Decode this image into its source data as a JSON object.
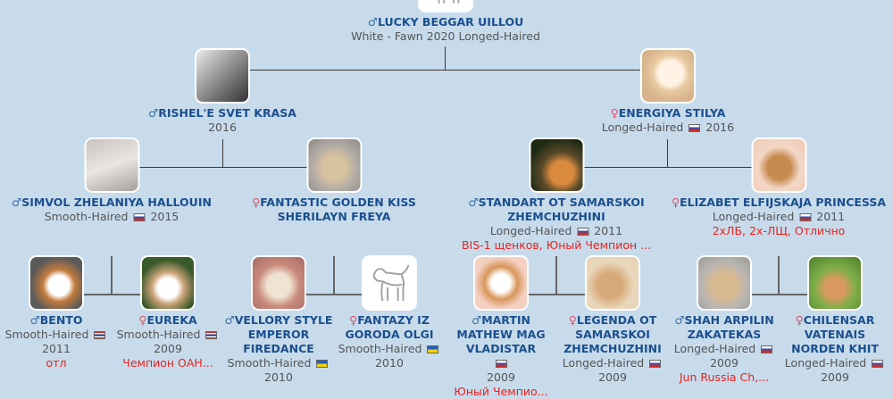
{
  "colors": {
    "background": "#c7dbeb",
    "name": "#1b4f8e",
    "award": "#e8231f",
    "male": "#3b6ea8",
    "female": "#d9546a"
  },
  "root": {
    "sex": "♂",
    "name": "LUCKY BEGGAR UILLOU",
    "details": "White - Fawn 2020 Longed-Haired",
    "photo": "placeholder-dog-icon"
  },
  "gen1": [
    {
      "sex": "♂",
      "name": "RISHEL'E SVET KRASA",
      "coat": "",
      "flag": "",
      "year": "2016",
      "award": ""
    },
    {
      "sex": "♀",
      "name": "ENERGIYA STILYA",
      "coat": "Longed-Haired",
      "flag": "ru",
      "year": "2016",
      "award": ""
    }
  ],
  "gen2": [
    {
      "sex": "♂",
      "name": "SIMVOL ZHELANIYA HALLOUIN",
      "coat": "Smooth-Haired",
      "flag": "ru",
      "year": "2015",
      "award": ""
    },
    {
      "sex": "♀",
      "name": "FANTASTIC GOLDEN KISS SHERILAYN FREYA",
      "coat": "",
      "flag": "",
      "year": "",
      "award": ""
    },
    {
      "sex": "♂",
      "name": "STANDART OT SAMARSKOI ZHEMCHUZHINI",
      "coat": "Longed-Haired",
      "flag": "ru",
      "year": "2011",
      "award": "BIS-1 щенков, Юный Чемпион ..."
    },
    {
      "sex": "♀",
      "name": "ELIZABET ELFIJSKAJA PRINCESSA",
      "coat": "Longed-Haired",
      "flag": "ru",
      "year": "2011",
      "award": "2хЛБ, 2х-ЛЩ, Отлично"
    }
  ],
  "gen3": [
    {
      "sex": "♂",
      "name": "BENTO",
      "coat": "Smooth-Haired",
      "flag": "th",
      "year": "2011",
      "award": "отл"
    },
    {
      "sex": "♀",
      "name": "EUREKA",
      "coat": "Smooth-Haired",
      "flag": "th",
      "year": "2009",
      "award": "Чемпион ОАН..."
    },
    {
      "sex": "♂",
      "name": "VELLORY STYLE EMPEROR FIREDANCE",
      "coat": "Smooth-Haired",
      "flag": "ua",
      "year": "2010",
      "award": ""
    },
    {
      "sex": "♀",
      "name": "FANTAZY IZ GORODA OLGI",
      "coat": "Smooth-Haired",
      "flag": "ua",
      "year": "2010",
      "award": "",
      "photo": "placeholder-dog-icon"
    },
    {
      "sex": "♂",
      "name": "MARTIN MATHEW MAG VLADISTAR",
      "coat": "",
      "flag": "ru",
      "year": "2009",
      "award": "Юный Чемпио..."
    },
    {
      "sex": "♀",
      "name": "LEGENDA OT SAMARSKOI ZHEMCHUZHINI",
      "coat": "Longed-Haired",
      "flag": "ru",
      "year": "2009",
      "award": ""
    },
    {
      "sex": "♂",
      "name": "SHAH ARPILIN ZAKATEKAS",
      "coat": "Longed-Haired",
      "flag": "ru",
      "year": "2009",
      "award": "Jun Russia Ch,..."
    },
    {
      "sex": "♀",
      "name": "CHILENSAR VATENAIS NORDEN KHIT",
      "coat": "Longed-Haired",
      "flag": "ru",
      "year": "2009",
      "award": ""
    }
  ]
}
